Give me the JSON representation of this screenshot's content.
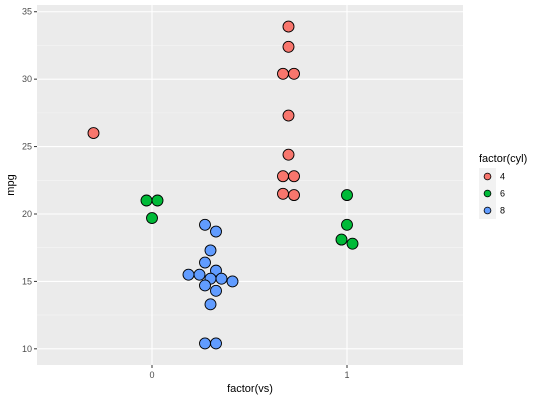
{
  "chart_data": {
    "type": "scatter",
    "xlabel": "factor(vs)",
    "ylabel": "mpg",
    "x_categories": [
      "0",
      "1"
    ],
    "yticks": [
      10,
      15,
      20,
      25,
      30,
      35
    ],
    "ylim": [
      8.8,
      35.5
    ],
    "grid": true,
    "legend": {
      "title": "factor(cyl)",
      "placement": "right",
      "entries": [
        {
          "label": "4",
          "color": "#F8766D"
        },
        {
          "label": "6",
          "color": "#00BA38"
        },
        {
          "label": "8",
          "color": "#619CFF"
        }
      ]
    },
    "series": [
      {
        "name": "4",
        "color": "#F8766D",
        "points": [
          {
            "x": "0",
            "y": 26.0
          },
          {
            "x": "1",
            "y": 33.9
          },
          {
            "x": "1",
            "y": 32.4
          },
          {
            "x": "1",
            "y": 30.4
          },
          {
            "x": "1",
            "y": 30.4
          },
          {
            "x": "1",
            "y": 27.3
          },
          {
            "x": "1",
            "y": 24.4
          },
          {
            "x": "1",
            "y": 22.8
          },
          {
            "x": "1",
            "y": 22.8
          },
          {
            "x": "1",
            "y": 21.5
          },
          {
            "x": "1",
            "y": 21.4
          }
        ]
      },
      {
        "name": "6",
        "color": "#00BA38",
        "points": [
          {
            "x": "0",
            "y": 21.0
          },
          {
            "x": "0",
            "y": 21.0
          },
          {
            "x": "0",
            "y": 19.7
          },
          {
            "x": "1",
            "y": 21.4
          },
          {
            "x": "1",
            "y": 19.2
          },
          {
            "x": "1",
            "y": 18.1
          },
          {
            "x": "1",
            "y": 17.8
          }
        ]
      },
      {
        "name": "8",
        "color": "#619CFF",
        "points": [
          {
            "x": "0",
            "y": 19.2
          },
          {
            "x": "0",
            "y": 18.7
          },
          {
            "x": "0",
            "y": 17.3
          },
          {
            "x": "0",
            "y": 16.4
          },
          {
            "x": "0",
            "y": 15.8
          },
          {
            "x": "0",
            "y": 15.5
          },
          {
            "x": "0",
            "y": 15.5
          },
          {
            "x": "0",
            "y": 15.2
          },
          {
            "x": "0",
            "y": 15.2
          },
          {
            "x": "0",
            "y": 15.0
          },
          {
            "x": "0",
            "y": 14.7
          },
          {
            "x": "0",
            "y": 14.3
          },
          {
            "x": "0",
            "y": 13.3
          },
          {
            "x": "0",
            "y": 10.4
          },
          {
            "x": "0",
            "y": 10.4
          }
        ]
      }
    ]
  }
}
